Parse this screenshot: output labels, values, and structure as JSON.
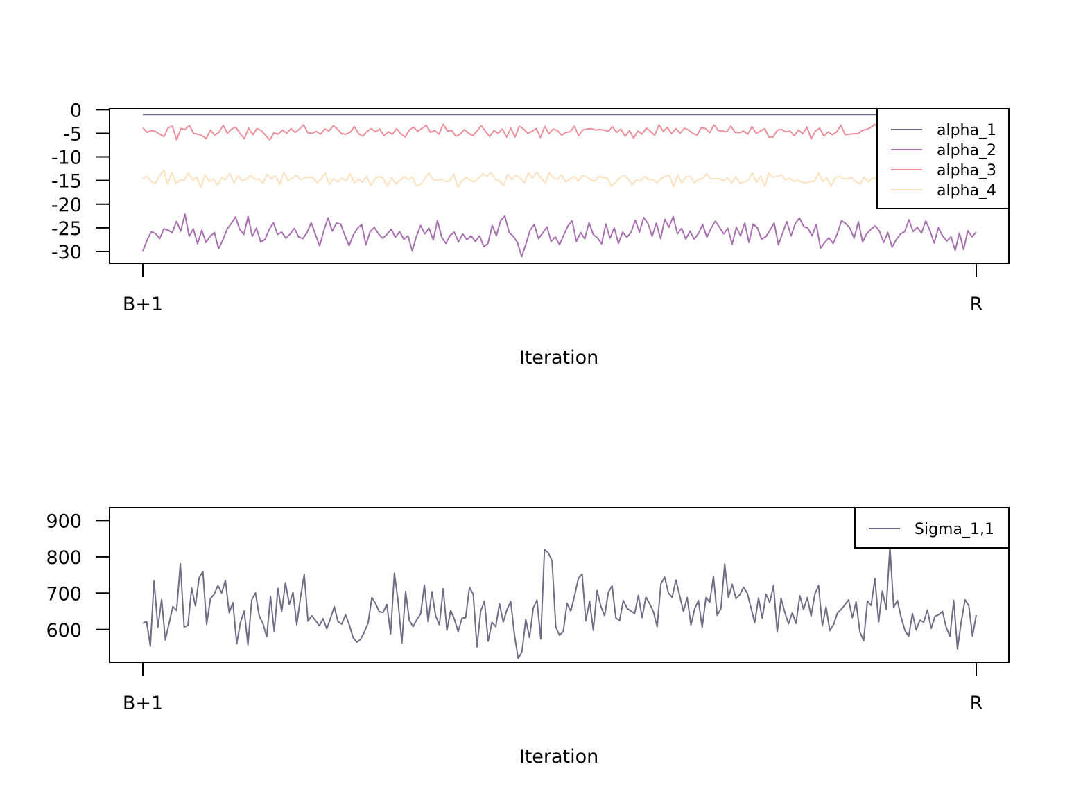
{
  "chart_data": [
    {
      "type": "line",
      "title": "",
      "xlabel": "Iteration",
      "ylabel": "",
      "x_tick_labels": [
        "B+1",
        "R"
      ],
      "yticks": [
        0,
        -5,
        -10,
        -15,
        -20,
        -25,
        -30
      ],
      "ylim": [
        -32.5,
        0.2
      ],
      "grid": false,
      "legend_position": "top-right",
      "series": [
        {
          "name": "alpha_1",
          "color": "#6f6c85",
          "values": [
            -1.0,
            -1.0,
            -1.0,
            -1.0,
            -1.0,
            -1.0,
            -1.0,
            -1.0,
            -1.0,
            -1.0,
            -1.0,
            -1.0,
            -1.0,
            -1.0,
            -1.0,
            -1.0,
            -1.0,
            -1.0,
            -1.0,
            -1.0,
            -1.0,
            -1.0,
            -1.0,
            -1.0,
            -1.0,
            -1.0,
            -1.0,
            -1.0,
            -1.0,
            -1.0,
            -1.0,
            -1.0,
            -1.0,
            -1.0,
            -1.0,
            -1.0,
            -1.0,
            -1.0,
            -1.0,
            -1.0,
            -1.0,
            -1.0,
            -1.0,
            -1.0,
            -1.0,
            -1.0,
            -1.0,
            -1.0,
            -1.0,
            -1.0,
            -1.0,
            -1.0,
            -1.0,
            -1.0,
            -1.0,
            -1.0,
            -1.0,
            -1.0,
            -1.0,
            -1.0,
            -1.0,
            -1.0,
            -1.0,
            -1.0,
            -1.0,
            -1.0,
            -1.0,
            -1.0,
            -1.0,
            -1.0,
            -1.0,
            -1.0,
            -1.0,
            -1.0,
            -1.0,
            -1.0,
            -1.0,
            -1.0,
            -1.0,
            -1.0,
            -1.0,
            -1.0,
            -1.0,
            -1.0,
            -1.0,
            -1.0,
            -1.0,
            -1.0,
            -1.0,
            -1.0,
            -1.0,
            -1.0,
            -1.0,
            -1.0,
            -1.0,
            -1.0,
            -1.0,
            -1.0,
            -1.0,
            -1.0,
            -1.0,
            -1.0,
            -1.0,
            -1.0,
            -1.0,
            -1.0,
            -1.0,
            -1.0,
            -1.0,
            -1.0,
            -1.0,
            -1.0,
            -1.0,
            -1.0,
            -1.0,
            -1.0,
            -1.0,
            -1.0,
            -1.0,
            -1.0,
            -1.0,
            -1.0,
            -1.0,
            -1.0,
            -1.0,
            -1.0,
            -1.0,
            -1.0,
            -1.0,
            -1.0,
            -1.0,
            -1.0,
            -1.0,
            -1.0,
            -1.0,
            -1.0,
            -1.0,
            -1.0,
            -1.0,
            -1.0,
            -1.0,
            -1.0,
            -1.0,
            -1.0,
            -1.0,
            -1.0,
            -1.0,
            -1.0,
            -1.0,
            -1.0,
            -1.0,
            -1.0,
            -1.0,
            -1.0,
            -1.0,
            -1.0,
            -1.0,
            -1.0,
            -1.0,
            -1.0,
            -1.0,
            -1.0,
            -1.0,
            -1.0,
            -1.0,
            -1.0,
            -1.0,
            -1.0,
            -1.0,
            -1.0,
            -1.0,
            -1.0,
            -1.0,
            -1.0,
            -1.0,
            -1.0,
            -1.0,
            -1.0,
            -1.0,
            -1.0,
            -1.0,
            -1.0,
            -1.0,
            -1.0,
            -1.0,
            -1.0,
            -1.0,
            -1.0,
            -1.0,
            -1.0,
            -1.0,
            -1.0,
            -1.0,
            -1.0,
            -1.0,
            -1.0,
            -1.0,
            -1.0,
            -1.0,
            -1.0,
            -1.0
          ]
        },
        {
          "name": "alpha_2",
          "color": "#a86fb0",
          "values": [
            -30.0,
            -27.6,
            -25.8,
            -26.2,
            -27.3,
            -25.2,
            -25.5,
            -26.0,
            -23.6,
            -25.7,
            -22.1,
            -26.8,
            -25.2,
            -28.4,
            -25.5,
            -28.1,
            -26.8,
            -26.0,
            -29.4,
            -27.6,
            -25.3,
            -24.1,
            -22.7,
            -25.3,
            -26.4,
            -22.6,
            -26.8,
            -25.1,
            -28.0,
            -27.5,
            -25.4,
            -23.9,
            -26.4,
            -25.9,
            -27.2,
            -26.3,
            -25.1,
            -26.9,
            -27.3,
            -26.0,
            -23.9,
            -26.4,
            -28.8,
            -25.6,
            -22.9,
            -25.7,
            -24.0,
            -24.2,
            -26.6,
            -28.8,
            -26.5,
            -25.1,
            -24.3,
            -28.6,
            -25.8,
            -24.9,
            -26.3,
            -27.2,
            -26.4,
            -25.3,
            -27.0,
            -25.8,
            -27.4,
            -26.7,
            -29.9,
            -26.8,
            -24.5,
            -26.3,
            -25.1,
            -27.6,
            -23.4,
            -27.0,
            -28.3,
            -26.6,
            -25.9,
            -28.0,
            -26.3,
            -27.5,
            -26.7,
            -27.9,
            -26.7,
            -29.0,
            -28.3,
            -24.5,
            -26.7,
            -23.5,
            -22.5,
            -25.9,
            -26.8,
            -28.1,
            -31.1,
            -28.5,
            -25.5,
            -24.3,
            -27.3,
            -26.1,
            -24.8,
            -27.9,
            -26.9,
            -28.6,
            -26.5,
            -24.6,
            -23.5,
            -27.9,
            -26.0,
            -27.3,
            -23.9,
            -26.4,
            -27.1,
            -28.4,
            -24.2,
            -27.2,
            -25.0,
            -28.3,
            -25.9,
            -27.0,
            -25.9,
            -23.4,
            -25.9,
            -22.8,
            -24.1,
            -26.8,
            -24.0,
            -27.3,
            -23.2,
            -24.9,
            -22.6,
            -26.3,
            -25.1,
            -27.4,
            -25.7,
            -27.4,
            -26.2,
            -24.3,
            -27.0,
            -25.1,
            -23.6,
            -24.9,
            -26.3,
            -25.1,
            -28.5,
            -24.9,
            -26.7,
            -24.0,
            -28.1,
            -24.2,
            -25.0,
            -27.4,
            -26.9,
            -25.5,
            -24.0,
            -28.6,
            -26.1,
            -23.7,
            -26.7,
            -24.1,
            -22.9,
            -24.7,
            -25.1,
            -26.7,
            -24.3,
            -29.3,
            -28.1,
            -27.1,
            -28.3,
            -26.2,
            -23.5,
            -24.1,
            -25.1,
            -27.2,
            -23.7,
            -28.0,
            -26.2,
            -25.3,
            -24.6,
            -25.7,
            -28.1,
            -26.0,
            -29.1,
            -27.5,
            -26.3,
            -25.8,
            -23.3,
            -25.8,
            -24.9,
            -26.1,
            -23.5,
            -25.6,
            -28.2,
            -25.0,
            -26.7,
            -27.8,
            -26.9,
            -29.8,
            -26.1,
            -29.6,
            -25.6,
            -26.9,
            -25.9
          ]
        },
        {
          "name": "alpha_3",
          "color": "#ec8f9a",
          "values": [
            -3.8,
            -4.8,
            -4.4,
            -4.6,
            -5.2,
            -5.7,
            -3.8,
            -3.5,
            -6.4,
            -4.0,
            -4.2,
            -3.3,
            -5.0,
            -5.2,
            -5.5,
            -6.1,
            -4.3,
            -5.4,
            -4.8,
            -3.3,
            -5.0,
            -4.1,
            -3.7,
            -5.1,
            -6.1,
            -3.9,
            -5.3,
            -4.0,
            -4.4,
            -5.4,
            -6.4,
            -4.9,
            -5.2,
            -4.3,
            -5.0,
            -4.0,
            -4.8,
            -4.1,
            -3.2,
            -4.9,
            -5.0,
            -4.6,
            -5.2,
            -4.1,
            -4.5,
            -3.4,
            -4.1,
            -5.1,
            -5.2,
            -4.8,
            -3.6,
            -5.1,
            -5.6,
            -4.6,
            -4.0,
            -4.7,
            -4.1,
            -5.5,
            -4.7,
            -5.2,
            -4.0,
            -5.1,
            -5.8,
            -4.3,
            -3.7,
            -4.6,
            -3.9,
            -3.3,
            -4.8,
            -4.4,
            -5.2,
            -3.1,
            -4.5,
            -4.4,
            -5.6,
            -5.2,
            -4.2,
            -5.0,
            -5.5,
            -4.5,
            -3.4,
            -4.6,
            -5.7,
            -4.4,
            -5.0,
            -4.1,
            -5.8,
            -3.9,
            -5.8,
            -3.5,
            -4.1,
            -5.0,
            -4.6,
            -4.0,
            -5.9,
            -3.5,
            -5.1,
            -4.1,
            -4.4,
            -5.4,
            -4.8,
            -4.7,
            -3.5,
            -5.5,
            -4.3,
            -4.1,
            -4.0,
            -4.3,
            -4.2,
            -4.3,
            -4.6,
            -3.6,
            -4.8,
            -4.1,
            -5.6,
            -4.4,
            -6.0,
            -4.5,
            -5.2,
            -3.9,
            -4.6,
            -5.4,
            -3.2,
            -4.6,
            -3.8,
            -5.1,
            -4.0,
            -5.0,
            -3.9,
            -4.3,
            -5.0,
            -5.4,
            -3.8,
            -4.0,
            -4.9,
            -3.2,
            -4.4,
            -4.5,
            -4.7,
            -3.5,
            -4.8,
            -4.9,
            -4.5,
            -5.2,
            -3.6,
            -5.0,
            -4.5,
            -4.0,
            -5.8,
            -5.8,
            -4.3,
            -4.2,
            -4.7,
            -4.5,
            -5.5,
            -4.3,
            -5.1,
            -3.7,
            -6.2,
            -4.5,
            -3.9,
            -5.6,
            -4.7,
            -5.3,
            -4.7,
            -3.3,
            -5.3,
            -5.2,
            -5.1,
            -5.1,
            -4.4,
            -4.2,
            -3.8,
            -3.1,
            -4.0,
            -4.5,
            -4.1,
            -5.6,
            -4.6,
            -4.6,
            -5.1,
            -4.2,
            -3.9,
            -4.4,
            -5.7,
            -4.9,
            -4.8,
            -3.5,
            -4.2,
            -5.2,
            -4.5,
            -4.3,
            -5.7,
            -4.7,
            -5.1,
            -4.1,
            -3.6,
            -5.0
          ]
        },
        {
          "name": "alpha_4",
          "color": "#fde0bd",
          "values": [
            -14.6,
            -14.1,
            -15.2,
            -15.7,
            -14.1,
            -12.8,
            -15.7,
            -13.2,
            -15.7,
            -14.9,
            -14.9,
            -13.4,
            -14.9,
            -14.3,
            -16.5,
            -13.8,
            -15.2,
            -14.7,
            -15.9,
            -14.5,
            -14.8,
            -13.5,
            -15.6,
            -14.0,
            -15.1,
            -14.7,
            -13.9,
            -14.7,
            -14.7,
            -15.6,
            -13.7,
            -14.6,
            -14.0,
            -15.8,
            -13.2,
            -15.0,
            -14.5,
            -13.9,
            -14.9,
            -14.4,
            -14.3,
            -14.3,
            -15.5,
            -14.7,
            -13.4,
            -15.8,
            -14.6,
            -15.3,
            -14.5,
            -15.1,
            -13.6,
            -15.5,
            -14.7,
            -15.4,
            -14.1,
            -16.0,
            -14.6,
            -14.1,
            -14.6,
            -16.2,
            -14.4,
            -15.7,
            -15.0,
            -14.1,
            -14.8,
            -14.3,
            -16.1,
            -15.8,
            -14.6,
            -13.4,
            -14.8,
            -15.0,
            -14.7,
            -15.3,
            -15.1,
            -13.6,
            -16.4,
            -15.0,
            -14.4,
            -14.9,
            -15.3,
            -14.5,
            -13.6,
            -14.1,
            -13.3,
            -14.8,
            -15.1,
            -16.0,
            -13.7,
            -14.8,
            -13.9,
            -14.4,
            -15.5,
            -13.4,
            -14.5,
            -13.2,
            -14.4,
            -15.6,
            -13.4,
            -14.4,
            -14.8,
            -13.8,
            -15.3,
            -14.7,
            -14.1,
            -15.1,
            -14.0,
            -14.2,
            -14.8,
            -15.2,
            -14.1,
            -14.4,
            -14.5,
            -16.2,
            -15.4,
            -14.5,
            -13.9,
            -14.6,
            -15.9,
            -14.9,
            -15.1,
            -14.1,
            -14.8,
            -14.8,
            -15.5,
            -14.6,
            -14.1,
            -13.9,
            -16.3,
            -13.8,
            -15.5,
            -14.2,
            -14.1,
            -15.5,
            -14.8,
            -14.6,
            -13.6,
            -14.7,
            -14.6,
            -14.6,
            -15.1,
            -14.4,
            -15.6,
            -14.2,
            -15.6,
            -15.4,
            -14.9,
            -13.4,
            -15.4,
            -14.0,
            -16.3,
            -13.4,
            -14.3,
            -14.1,
            -13.8,
            -14.9,
            -14.5,
            -15.2,
            -14.9,
            -15.4,
            -15.5,
            -15.2,
            -15.2,
            -13.4,
            -15.2,
            -14.5,
            -16.2,
            -14.4,
            -14.1,
            -14.6,
            -14.6,
            -14.4,
            -15.3,
            -15.7,
            -14.3,
            -15.3,
            -14.5,
            -14.6,
            -14.5,
            -16.1,
            -14.3,
            -14.2,
            -13.7,
            -13.3,
            -14.2,
            -13.7,
            -15.1,
            -15.1,
            -14.6,
            -13.0,
            -14.9,
            -15.6,
            -14.9,
            -14.9,
            -15.4,
            -13.4,
            -14.5,
            -15.1,
            -14.0,
            -14.2,
            -15.4,
            -14.9
          ]
        }
      ]
    },
    {
      "type": "line",
      "title": "",
      "xlabel": "Iteration",
      "ylabel": "",
      "x_tick_labels": [
        "B+1",
        "R"
      ],
      "yticks": [
        600,
        700,
        800,
        900
      ],
      "ylim": [
        510,
        935
      ],
      "grid": false,
      "legend_position": "top-right",
      "series": [
        {
          "name": "Sigma_1,1",
          "color": "#6f6c85",
          "values": [
            617,
            622,
            554,
            734,
            606,
            683,
            571,
            618,
            663,
            652,
            781,
            607,
            611,
            714,
            665,
            742,
            760,
            614,
            685,
            697,
            721,
            700,
            735,
            646,
            674,
            561,
            620,
            651,
            558,
            681,
            701,
            638,
            616,
            580,
            691,
            595,
            713,
            649,
            729,
            669,
            702,
            613,
            688,
            752,
            623,
            638,
            625,
            610,
            630,
            602,
            631,
            663,
            622,
            615,
            641,
            613,
            578,
            565,
            573,
            593,
            618,
            688,
            671,
            649,
            647,
            669,
            588,
            755,
            677,
            563,
            705,
            625,
            608,
            628,
            643,
            722,
            621,
            704,
            638,
            613,
            712,
            598,
            653,
            628,
            594,
            631,
            633,
            716,
            697,
            552,
            651,
            678,
            568,
            620,
            608,
            671,
            621,
            655,
            677,
            585,
            520,
            540,
            628,
            578,
            659,
            681,
            574,
            820,
            811,
            789,
            607,
            584,
            595,
            672,
            651,
            693,
            740,
            753,
            624,
            678,
            598,
            707,
            664,
            638,
            702,
            720,
            632,
            625,
            680,
            658,
            651,
            644,
            694,
            633,
            689,
            671,
            649,
            608,
            726,
            744,
            701,
            688,
            736,
            693,
            650,
            688,
            612,
            657,
            680,
            606,
            688,
            675,
            746,
            639,
            658,
            780,
            688,
            724,
            685,
            695,
            716,
            700,
            660,
            619,
            687,
            631,
            697,
            674,
            721,
            593,
            686,
            647,
            616,
            646,
            617,
            693,
            655,
            688,
            637,
            697,
            721,
            610,
            662,
            597,
            614,
            645,
            655,
            668,
            682,
            633,
            676,
            593,
            569,
            678,
            666,
            740,
            621,
            706,
            656,
            827,
            661,
            680,
            633,
            598,
            581,
            644,
            599,
            626,
            620,
            654,
            603,
            636,
            641,
            650,
            606,
            581,
            680,
            546,
            621,
            682,
            666,
            582,
            640
          ]
        }
      ]
    }
  ]
}
